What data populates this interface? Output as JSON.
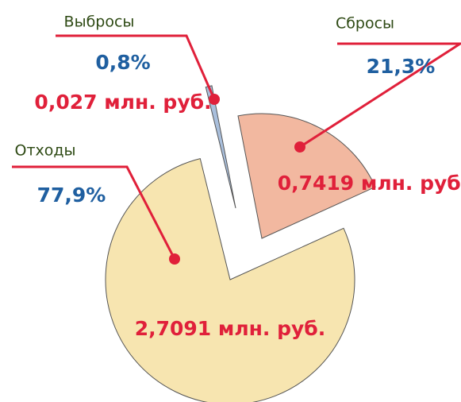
{
  "chart_data": {
    "type": "pie",
    "categories": [
      "Выбросы",
      "Сбросы",
      "Отходы"
    ],
    "values": [
      0.8,
      21.3,
      77.9
    ],
    "value_labels": [
      "0,8%",
      "21,3%",
      "77,9%"
    ],
    "amount_labels": [
      "0,027 млн. руб.",
      "0,7419 млн. руб.",
      "2,7091 млн. руб."
    ],
    "colors": [
      "#a9bfdc",
      "#f2b8a0",
      "#f7e5b0"
    ]
  }
}
